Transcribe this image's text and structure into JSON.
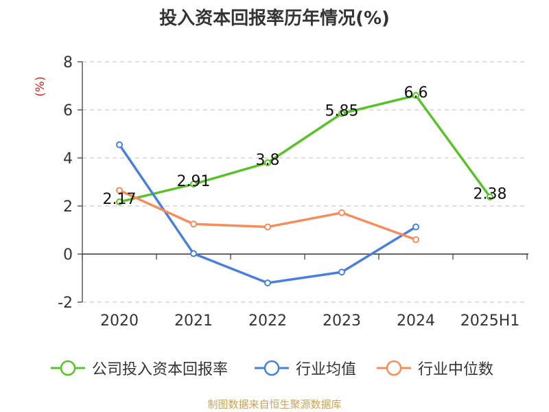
{
  "chart_data": {
    "type": "line",
    "title": "投入资本回报率历年情况(%)",
    "ylabel": "(%)",
    "categories": [
      "2020",
      "2021",
      "2022",
      "2023",
      "2024",
      "2025H1"
    ],
    "ylim": [
      -2,
      8
    ],
    "yticks": [
      -2,
      0,
      2,
      4,
      6,
      8
    ],
    "grid": true,
    "legend_position": "bottom",
    "series": [
      {
        "name": "公司投入资本回报率",
        "color": "#5ac229",
        "values": [
          2.17,
          2.91,
          3.8,
          5.85,
          6.6,
          2.38
        ],
        "labels": [
          "2.17",
          "2.91",
          "3.8",
          "5.85",
          "6.6",
          "2.38"
        ]
      },
      {
        "name": "行业均值",
        "color": "#4a7fdc",
        "values": [
          4.55,
          0.02,
          -1.2,
          -0.75,
          1.13,
          null
        ]
      },
      {
        "name": "行业中位数",
        "color": "#f78c5a",
        "values": [
          2.65,
          1.25,
          1.13,
          1.72,
          0.6,
          null
        ]
      }
    ]
  },
  "source": "制图数据来自恒生聚源数据库"
}
